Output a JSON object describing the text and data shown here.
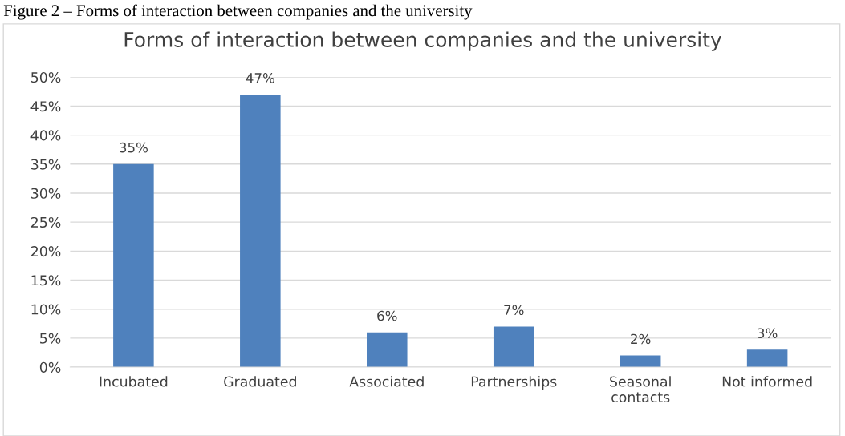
{
  "chart_data": {
    "type": "bar",
    "title": "Forms of interaction between companies and the university",
    "annotations": [
      "Figure 2 – Forms of interaction between companies and the university"
    ],
    "categories": [
      "Incubated",
      "Graduated",
      "Associated",
      "Partnerships",
      "Seasonal contacts",
      "Not informed"
    ],
    "values": [
      35,
      47,
      6,
      7,
      2,
      3
    ],
    "value_labels": [
      "35%",
      "47%",
      "6%",
      "7%",
      "2%",
      "3%"
    ],
    "color": "#4f81bd",
    "ylim": [
      0,
      50
    ],
    "yticks": [
      {
        "value": 0,
        "label": "0%"
      },
      {
        "value": 5,
        "label": "5%"
      },
      {
        "value": 10,
        "label": "10%"
      },
      {
        "value": 15,
        "label": "15%"
      },
      {
        "value": 20,
        "label": "20%"
      },
      {
        "value": 25,
        "label": "25%"
      },
      {
        "value": 30,
        "label": "30%"
      },
      {
        "value": 35,
        "label": "35%"
      },
      {
        "value": 40,
        "label": "40%"
      },
      {
        "value": 45,
        "label": "45%"
      },
      {
        "value": 50,
        "label": "50%"
      }
    ],
    "grid": "y",
    "legend": false
  }
}
